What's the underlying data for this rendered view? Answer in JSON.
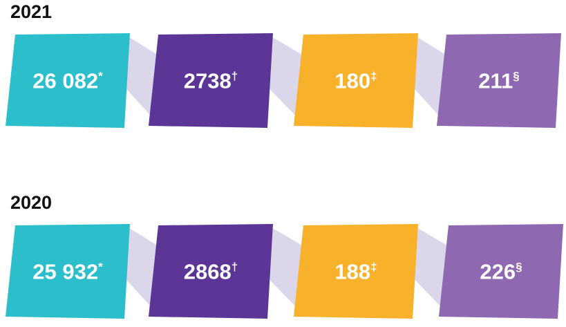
{
  "rows": [
    {
      "year": "2021",
      "items": [
        {
          "value": "26 082",
          "note": "*"
        },
        {
          "value": "2738",
          "note": "†"
        },
        {
          "value": "180",
          "note": "‡"
        },
        {
          "value": "211",
          "note": "§"
        }
      ]
    },
    {
      "year": "2020",
      "items": [
        {
          "value": "25 932",
          "note": "*"
        },
        {
          "value": "2868",
          "note": "†"
        },
        {
          "value": "188",
          "note": "‡"
        },
        {
          "value": "226",
          "note": "§"
        }
      ]
    }
  ]
}
